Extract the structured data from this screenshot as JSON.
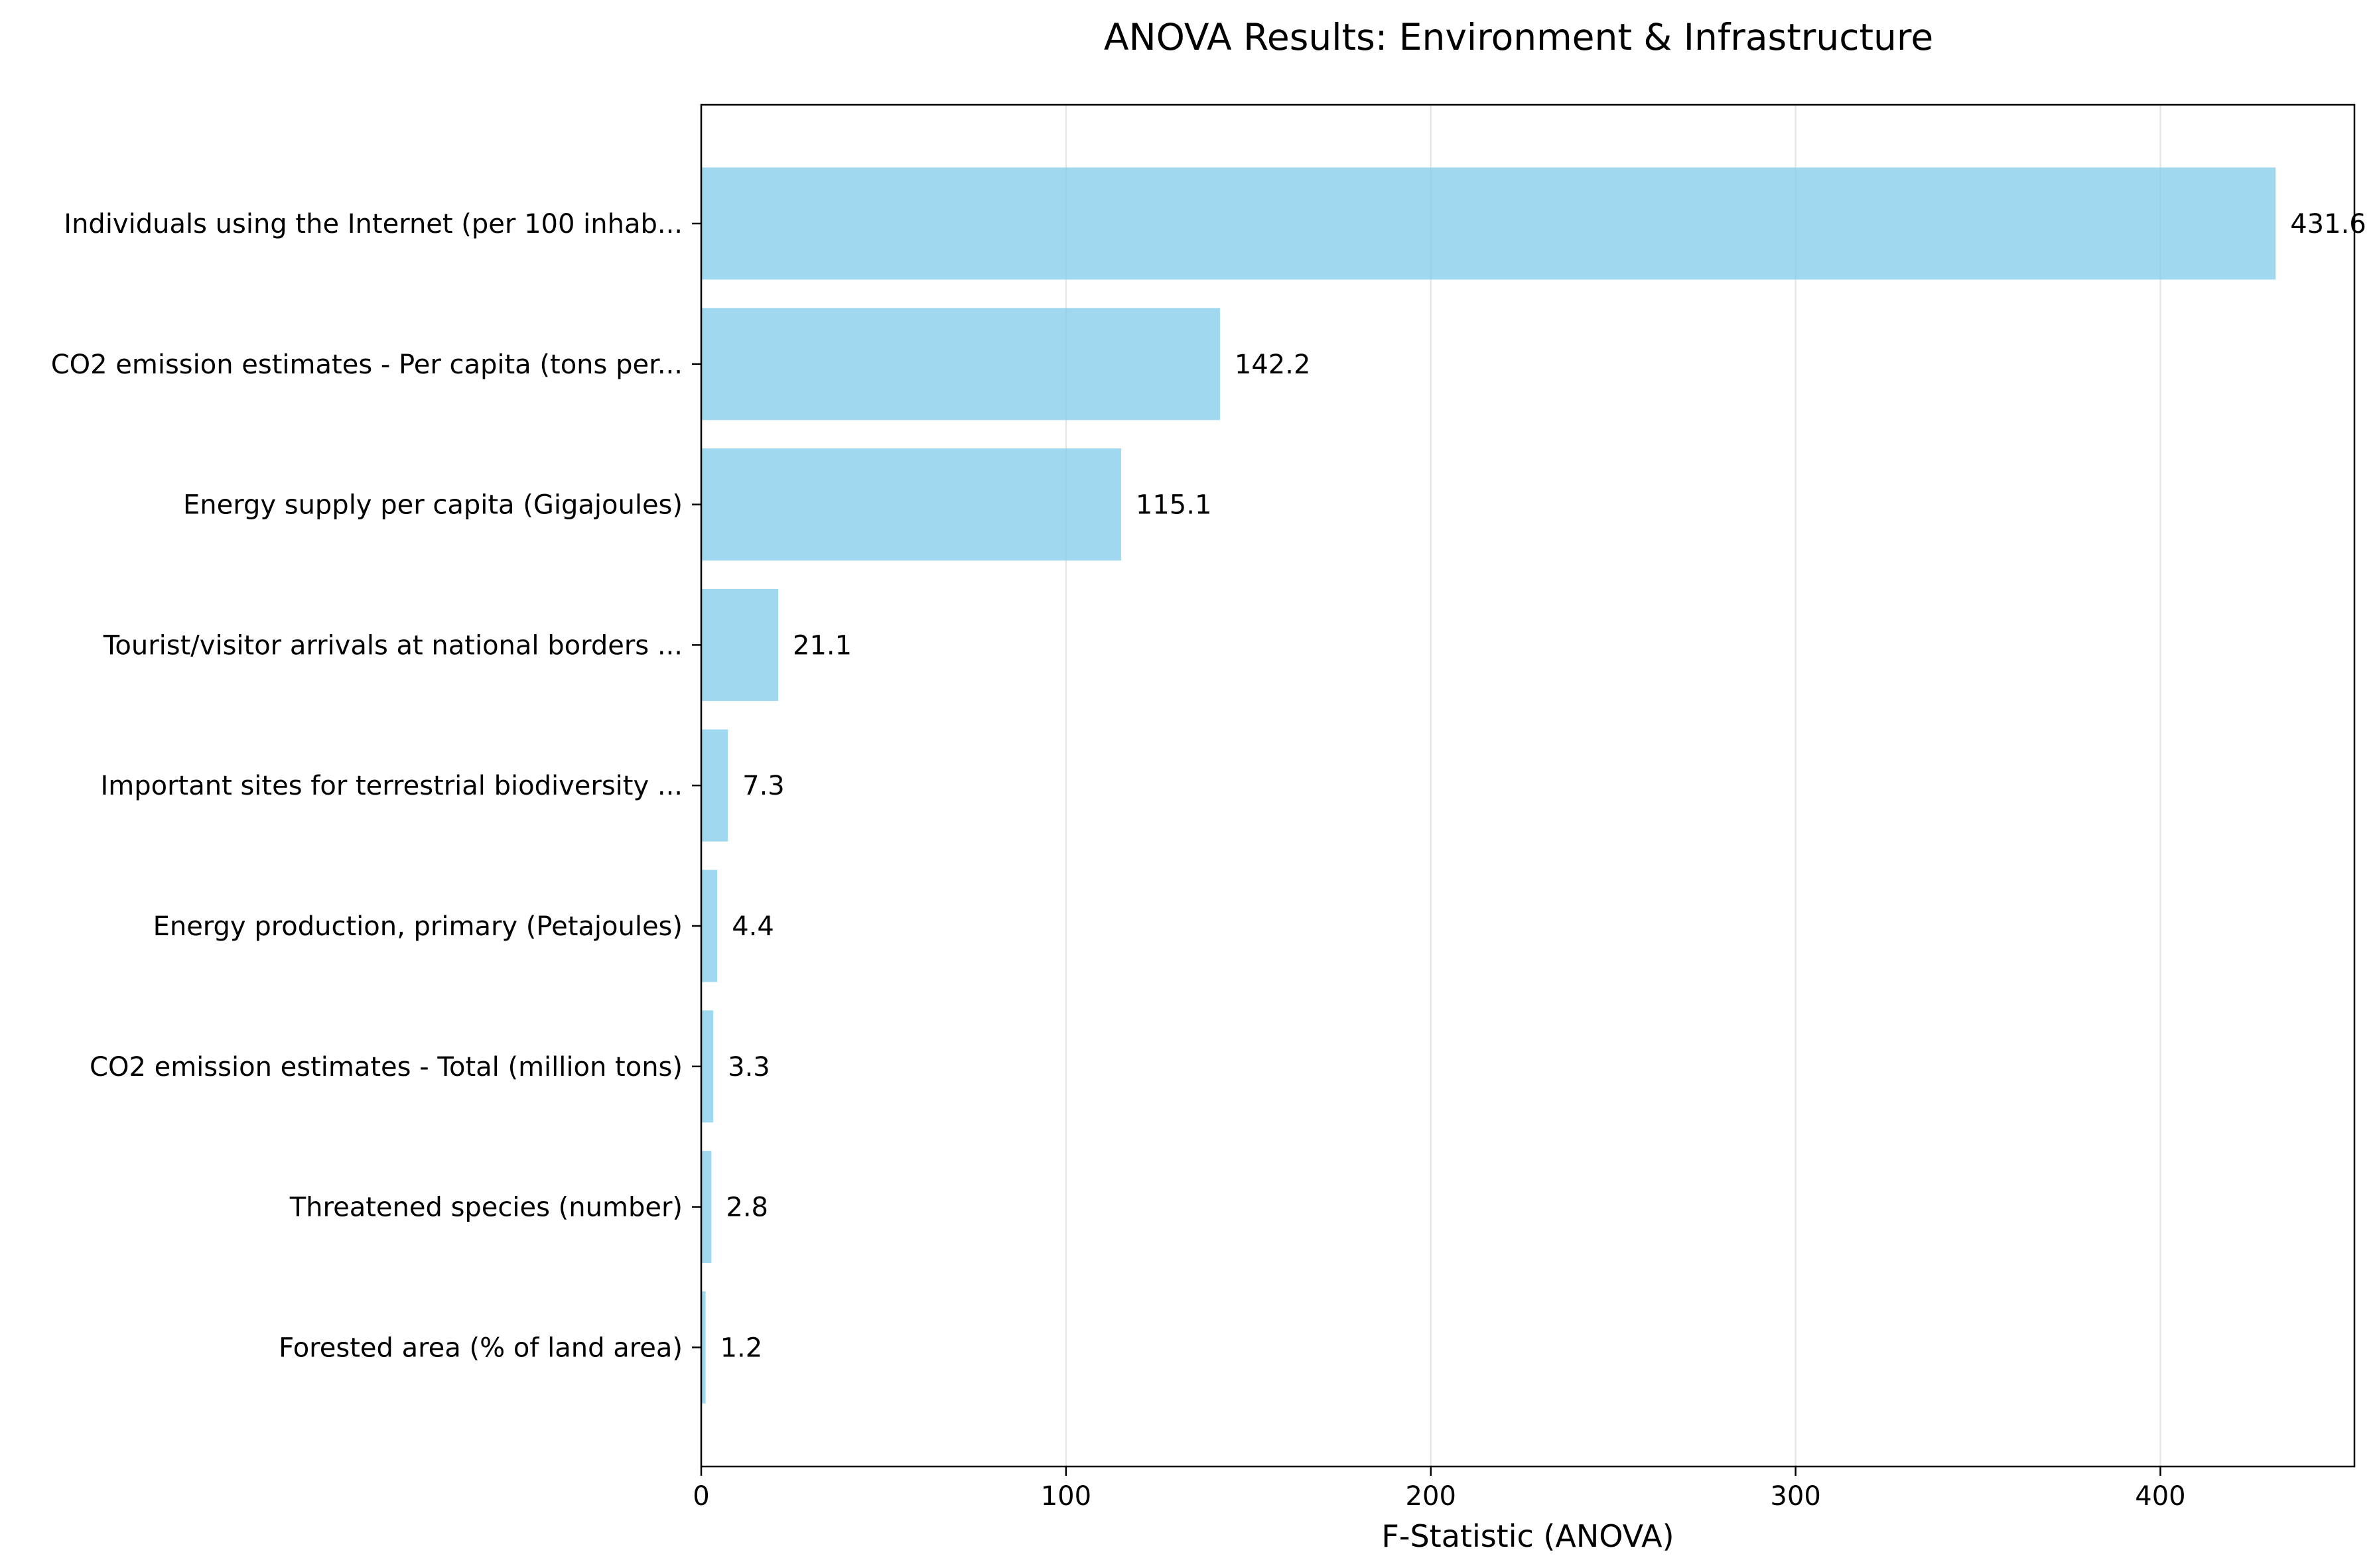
{
  "chart_data": {
    "type": "bar",
    "orientation": "horizontal",
    "title": "ANOVA Results: Environment & Infrastructure",
    "xlabel": "F-Statistic (ANOVA)",
    "ylabel": "",
    "xlim": [
      0,
      453.2
    ],
    "xticks": [
      0,
      100,
      200,
      300,
      400
    ],
    "xtick_labels": [
      "0",
      "100",
      "200",
      "300",
      "400"
    ],
    "grid": "vertical",
    "bar_color": "#87ceeb",
    "categories": [
      "Individuals using the Internet (per 100 inhab...",
      "CO2 emission estimates - Per capita (tons per...",
      "Energy supply per capita (Gigajoules)",
      "Tourist/visitor arrivals at national borders ...",
      "Important sites for terrestrial biodiversity ...",
      "Energy production, primary (Petajoules)",
      "CO2 emission estimates - Total (million tons)",
      "Threatened species (number)",
      "Forested area (% of land area)"
    ],
    "values": [
      431.6,
      142.2,
      115.1,
      21.1,
      7.3,
      4.4,
      3.3,
      2.8,
      1.2
    ],
    "value_labels": [
      "431.6",
      "142.2",
      "115.1",
      "21.1",
      "7.3",
      "4.4",
      "3.3",
      "2.8",
      "1.2"
    ]
  }
}
